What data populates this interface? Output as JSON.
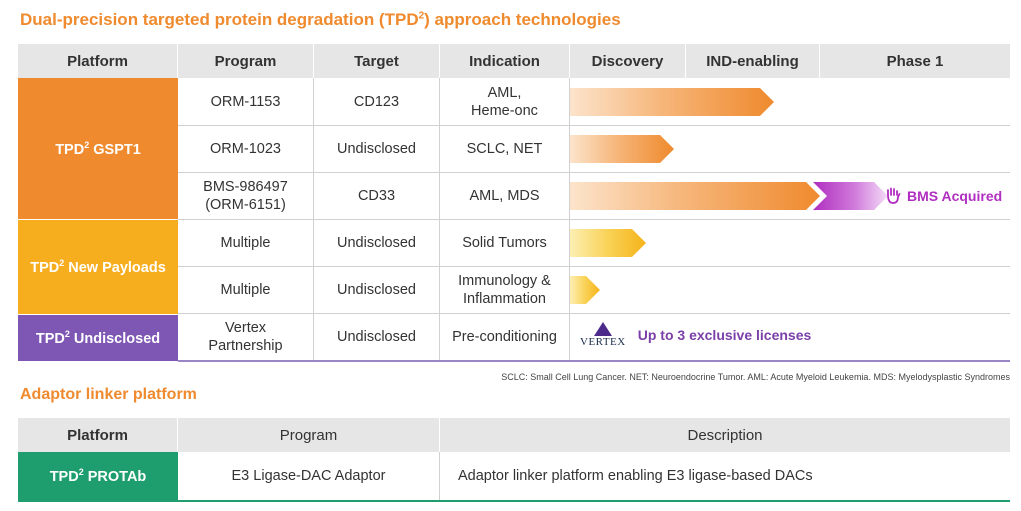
{
  "title": {
    "main": "Dual-precision targeted protein degradation (TPD",
    "sup": "2",
    "tail": ") approach technologies"
  },
  "pipeline": {
    "headers": [
      "Platform",
      "Program",
      "Target",
      "Indication",
      "Discovery",
      "IND-enabling",
      "Phase 1"
    ],
    "platforms": [
      {
        "label": "TPD",
        "sup": "2",
        "tail": " GSPT1",
        "color": "#EF8A2E"
      },
      {
        "label": "TPD",
        "sup": "2",
        "tail": " New Payloads",
        "color": "#F7AE1E"
      },
      {
        "label": "TPD",
        "sup": "2",
        "tail": " Undisclosed",
        "color": "#7E57B5"
      }
    ],
    "rows": [
      {
        "program": "ORM-1153",
        "target": "CD123",
        "indication": "AML,\nHeme-onc",
        "progress": "IND-enabling"
      },
      {
        "program": "ORM-1023",
        "target": "Undisclosed",
        "indication": "SCLC, NET",
        "progress": "Discovery"
      },
      {
        "program": "BMS-986497\n(ORM-6151)",
        "target": "CD33",
        "indication": "AML, MDS",
        "progress": "Phase 1"
      },
      {
        "program": "Multiple",
        "target": "Undisclosed",
        "indication": "Solid Tumors",
        "progress": "Discovery"
      },
      {
        "program": "Multiple",
        "target": "Undisclosed",
        "indication": "Immunology &\nInflammation",
        "progress": "Discovery"
      },
      {
        "program": "Vertex\nPartnership",
        "target": "Undisclosed",
        "indication": "Pre-conditioning",
        "progress": ""
      }
    ],
    "bms_label": "BMS Acquired",
    "vertex_logo_text": "VERTEX",
    "vertex_label": "Up to 3 exclusive licenses"
  },
  "footnote": "SCLC: Small Cell Lung Cancer. NET: Neuroendocrine Tumor. AML: Acute Myeloid Leukemia. MDS: Myelodysplastic Syndromes",
  "adaptor": {
    "title": "Adaptor linker platform",
    "headers": [
      "Platform",
      "Program",
      "Description"
    ],
    "platform": {
      "label": "TPD",
      "sup": "2",
      "tail": " PROTAb",
      "color": "#1E9E6E"
    },
    "program": "E3 Ligase-DAC Adaptor",
    "description": "Adaptor linker platform enabling E3 ligase-based DACs"
  },
  "colors": {
    "accent_orange": "#EF8A2E",
    "bms_purple": "#B02EC0",
    "vertex_purple": "#7B3FA8"
  }
}
